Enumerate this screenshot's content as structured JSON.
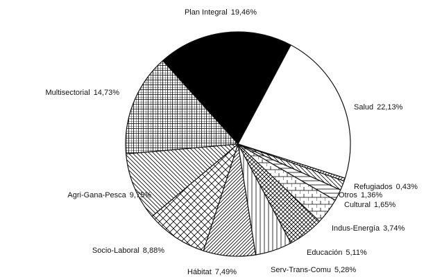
{
  "chart_data": {
    "type": "pie",
    "categories": [
      "Plan Integral",
      "Salud",
      "Refugiados",
      "Otros",
      "Cultural",
      "Indus-Energía",
      "Educación",
      "Serv-Trans-Comu",
      "Hábitat",
      "Socio-Laboral",
      "Agri-Gana-Pesca",
      "Multisectorial"
    ],
    "values": [
      19.46,
      22.13,
      0.43,
      1.36,
      1.65,
      3.74,
      5.11,
      5.28,
      7.49,
      8.88,
      9.75,
      14.73
    ],
    "value_labels": [
      "19,46%",
      "22,13%",
      "0,43%",
      "1,36%",
      "1,65%",
      "3,74%",
      "5,11%",
      "5,28%",
      "7,49%",
      "8,88%",
      "9,75%",
      "14,73%"
    ]
  }
}
